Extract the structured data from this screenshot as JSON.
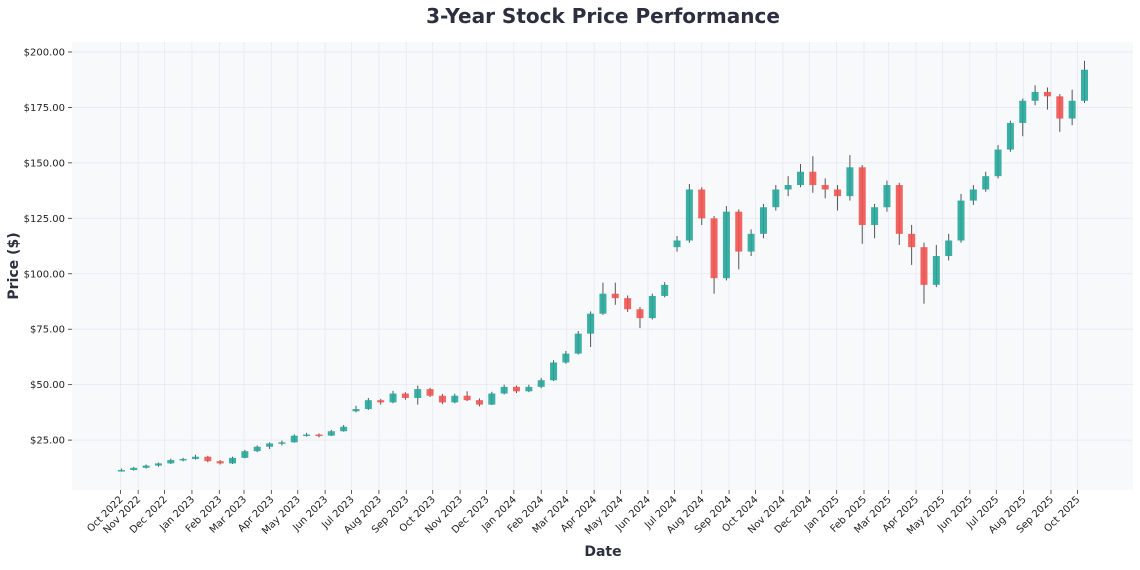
{
  "chart_data": {
    "type": "candlestick",
    "title": "3-Year Stock Price Performance",
    "xlabel": "Date",
    "ylabel": "Price ($)",
    "ylim": [
      2.5,
      204.5
    ],
    "xlim": [
      "2022-08-18",
      "2025-12-03"
    ],
    "grid": true,
    "y_ticks": [
      25,
      50,
      75,
      100,
      125,
      150,
      175,
      200
    ],
    "y_tick_labels": [
      "$25.00",
      "$50.00",
      "$75.00",
      "$100.00",
      "$125.00",
      "$150.00",
      "$175.00",
      "$200.00"
    ],
    "x_ticks": [
      [
        "2022-10-12",
        "Oct 2022"
      ],
      [
        "2022-11-01",
        "Nov 2022"
      ],
      [
        "2022-12-01",
        "Dec 2022"
      ],
      [
        "2023-01-01",
        "Jan 2023"
      ],
      [
        "2023-02-01",
        "Feb 2023"
      ],
      [
        "2023-03-01",
        "Mar 2023"
      ],
      [
        "2023-04-01",
        "Apr 2023"
      ],
      [
        "2023-05-01",
        "May 2023"
      ],
      [
        "2023-06-01",
        "Jun 2023"
      ],
      [
        "2023-07-01",
        "Jul 2023"
      ],
      [
        "2023-08-01",
        "Aug 2023"
      ],
      [
        "2023-09-01",
        "Sep 2023"
      ],
      [
        "2023-10-01",
        "Oct 2023"
      ],
      [
        "2023-11-01",
        "Nov 2023"
      ],
      [
        "2023-12-01",
        "Dec 2023"
      ],
      [
        "2024-01-01",
        "Jan 2024"
      ],
      [
        "2024-02-01",
        "Feb 2024"
      ],
      [
        "2024-03-01",
        "Mar 2024"
      ],
      [
        "2024-04-01",
        "Apr 2024"
      ],
      [
        "2024-05-01",
        "May 2024"
      ],
      [
        "2024-06-01",
        "Jun 2024"
      ],
      [
        "2024-07-01",
        "Jul 2024"
      ],
      [
        "2024-08-01",
        "Aug 2024"
      ],
      [
        "2024-09-01",
        "Sep 2024"
      ],
      [
        "2024-10-01",
        "Oct 2024"
      ],
      [
        "2024-11-01",
        "Nov 2024"
      ],
      [
        "2024-12-01",
        "Dec 2024"
      ],
      [
        "2025-01-01",
        "Jan 2025"
      ],
      [
        "2025-02-01",
        "Feb 2025"
      ],
      [
        "2025-03-01",
        "Mar 2025"
      ],
      [
        "2025-04-01",
        "Apr 2025"
      ],
      [
        "2025-05-01",
        "May 2025"
      ],
      [
        "2025-06-01",
        "Jun 2025"
      ],
      [
        "2025-07-01",
        "Jul 2025"
      ],
      [
        "2025-08-01",
        "Aug 2025"
      ],
      [
        "2025-09-01",
        "Sep 2025"
      ],
      [
        "2025-10-01",
        "Oct 2025"
      ]
    ],
    "colors": {
      "up": "#26a69a",
      "down": "#ef5350",
      "plot_bg": "#f7f9fb",
      "grid": "#e6e9ee"
    },
    "columns": [
      "date",
      "open",
      "high",
      "low",
      "close"
    ],
    "ohlc": [
      [
        "2022-10-13",
        11.0,
        12.2,
        10.8,
        11.5
      ],
      [
        "2022-10-27",
        11.5,
        12.9,
        11.3,
        12.5
      ],
      [
        "2022-11-10",
        12.5,
        14.0,
        12.2,
        13.5
      ],
      [
        "2022-11-24",
        13.5,
        14.9,
        13.0,
        14.5
      ],
      [
        "2022-12-08",
        14.5,
        16.6,
        14.2,
        16.0
      ],
      [
        "2022-12-22",
        16.0,
        17.0,
        15.4,
        16.5
      ],
      [
        "2023-01-05",
        16.5,
        18.4,
        16.2,
        17.5
      ],
      [
        "2023-01-19",
        17.5,
        17.9,
        15.0,
        15.5
      ],
      [
        "2023-02-02",
        15.5,
        16.0,
        14.0,
        14.5
      ],
      [
        "2023-02-16",
        14.5,
        17.5,
        14.2,
        17.0
      ],
      [
        "2023-03-02",
        17.0,
        20.6,
        16.8,
        20.0
      ],
      [
        "2023-03-16",
        20.0,
        22.6,
        19.6,
        22.0
      ],
      [
        "2023-03-30",
        22.0,
        24.0,
        21.0,
        23.5
      ],
      [
        "2023-04-13",
        23.5,
        24.8,
        22.6,
        24.0
      ],
      [
        "2023-04-27",
        24.0,
        27.6,
        23.8,
        27.0
      ],
      [
        "2023-05-11",
        27.0,
        28.3,
        26.6,
        27.5
      ],
      [
        "2023-05-25",
        27.5,
        28.0,
        26.2,
        27.0
      ],
      [
        "2023-06-08",
        27.0,
        29.6,
        26.8,
        29.0
      ],
      [
        "2023-06-22",
        29.0,
        31.8,
        28.8,
        31.0
      ],
      [
        "2023-07-06",
        38.0,
        40.5,
        37.5,
        39.0
      ],
      [
        "2023-07-20",
        39.0,
        44.0,
        38.6,
        43.0
      ],
      [
        "2023-08-03",
        43.0,
        43.6,
        41.0,
        42.0
      ],
      [
        "2023-08-17",
        42.0,
        47.2,
        41.6,
        46.0
      ],
      [
        "2023-08-31",
        46.0,
        46.6,
        43.2,
        44.0
      ],
      [
        "2023-09-14",
        44.0,
        49.6,
        41.0,
        48.0
      ],
      [
        "2023-09-28",
        48.0,
        48.6,
        44.4,
        45.0
      ],
      [
        "2023-10-12",
        45.0,
        45.8,
        41.2,
        42.0
      ],
      [
        "2023-10-26",
        42.0,
        45.9,
        41.6,
        45.0
      ],
      [
        "2023-11-09",
        45.0,
        47.0,
        42.6,
        43.0
      ],
      [
        "2023-11-23",
        43.0,
        43.8,
        40.2,
        41.0
      ],
      [
        "2023-12-07",
        41.0,
        46.8,
        40.8,
        46.0
      ],
      [
        "2023-12-21",
        46.0,
        50.0,
        45.6,
        49.0
      ],
      [
        "2024-01-04",
        49.0,
        49.6,
        46.2,
        47.0
      ],
      [
        "2024-01-18",
        47.0,
        50.0,
        46.6,
        49.0
      ],
      [
        "2024-02-01",
        49.0,
        53.0,
        48.4,
        52.0
      ],
      [
        "2024-02-15",
        52.0,
        61.0,
        51.6,
        60.0
      ],
      [
        "2024-02-29",
        60.0,
        65.2,
        59.4,
        64.0
      ],
      [
        "2024-03-14",
        64.0,
        74.2,
        63.6,
        73.0
      ],
      [
        "2024-03-28",
        73.0,
        83.0,
        67.0,
        82.0
      ],
      [
        "2024-04-11",
        82.0,
        96.0,
        81.5,
        91.0
      ],
      [
        "2024-04-25",
        91.0,
        96.0,
        86.0,
        89.0
      ],
      [
        "2024-05-09",
        89.0,
        90.2,
        82.8,
        84.0
      ],
      [
        "2024-05-23",
        84.0,
        85.0,
        75.5,
        80.0
      ],
      [
        "2024-06-06",
        80.0,
        91.0,
        79.4,
        90.0
      ],
      [
        "2024-06-20",
        90.0,
        96.2,
        89.4,
        95.0
      ],
      [
        "2024-07-04",
        112.0,
        117.0,
        110.0,
        115.0
      ],
      [
        "2024-07-18",
        115.0,
        140.5,
        114.0,
        138.0
      ],
      [
        "2024-08-01",
        138.0,
        139.0,
        122.0,
        125.0
      ],
      [
        "2024-08-15",
        125.0,
        126.0,
        91.0,
        98.0
      ],
      [
        "2024-08-29",
        98.0,
        130.5,
        97.0,
        128.0
      ],
      [
        "2024-09-12",
        128.0,
        129.0,
        102.0,
        110.0
      ],
      [
        "2024-09-26",
        110.0,
        120.0,
        108.0,
        118.0
      ],
      [
        "2024-10-10",
        118.0,
        131.5,
        116.0,
        130.0
      ],
      [
        "2024-10-24",
        130.0,
        140.0,
        128.5,
        138.0
      ],
      [
        "2024-11-07",
        138.0,
        144.0,
        135.0,
        140.0
      ],
      [
        "2024-11-21",
        140.0,
        149.5,
        139.0,
        146.0
      ],
      [
        "2024-12-05",
        146.0,
        153.0,
        136.5,
        140.0
      ],
      [
        "2024-12-19",
        140.0,
        143.0,
        134.0,
        138.0
      ],
      [
        "2025-01-02",
        138.0,
        140.0,
        128.5,
        135.0
      ],
      [
        "2025-01-16",
        135.0,
        153.5,
        133.0,
        148.0
      ],
      [
        "2025-01-30",
        148.0,
        149.0,
        113.5,
        122.0
      ],
      [
        "2025-02-13",
        122.0,
        131.5,
        116.0,
        130.0
      ],
      [
        "2025-02-27",
        130.0,
        142.0,
        128.0,
        140.0
      ],
      [
        "2025-03-13",
        140.0,
        141.0,
        113.0,
        118.0
      ],
      [
        "2025-03-27",
        118.0,
        122.0,
        104.0,
        112.0
      ],
      [
        "2025-04-10",
        112.0,
        114.0,
        86.5,
        95.0
      ],
      [
        "2025-04-24",
        95.0,
        113.0,
        94.0,
        108.0
      ],
      [
        "2025-05-08",
        108.0,
        118.0,
        106.0,
        115.0
      ],
      [
        "2025-05-22",
        115.0,
        136.0,
        114.0,
        133.0
      ],
      [
        "2025-06-05",
        133.0,
        140.0,
        131.0,
        138.0
      ],
      [
        "2025-06-19",
        138.0,
        146.0,
        137.0,
        144.0
      ],
      [
        "2025-07-03",
        144.0,
        158.0,
        143.0,
        156.0
      ],
      [
        "2025-07-17",
        156.0,
        169.0,
        155.0,
        168.0
      ],
      [
        "2025-07-31",
        168.0,
        179.0,
        162.0,
        178.0
      ],
      [
        "2025-08-14",
        178.0,
        185.0,
        176.0,
        182.0
      ],
      [
        "2025-08-28",
        182.0,
        184.0,
        174.0,
        180.0
      ],
      [
        "2025-09-11",
        180.0,
        181.0,
        164.0,
        170.0
      ],
      [
        "2025-09-25",
        170.0,
        183.0,
        167.0,
        178.0
      ],
      [
        "2025-10-09",
        178.0,
        196.0,
        177.0,
        192.0
      ]
    ]
  }
}
